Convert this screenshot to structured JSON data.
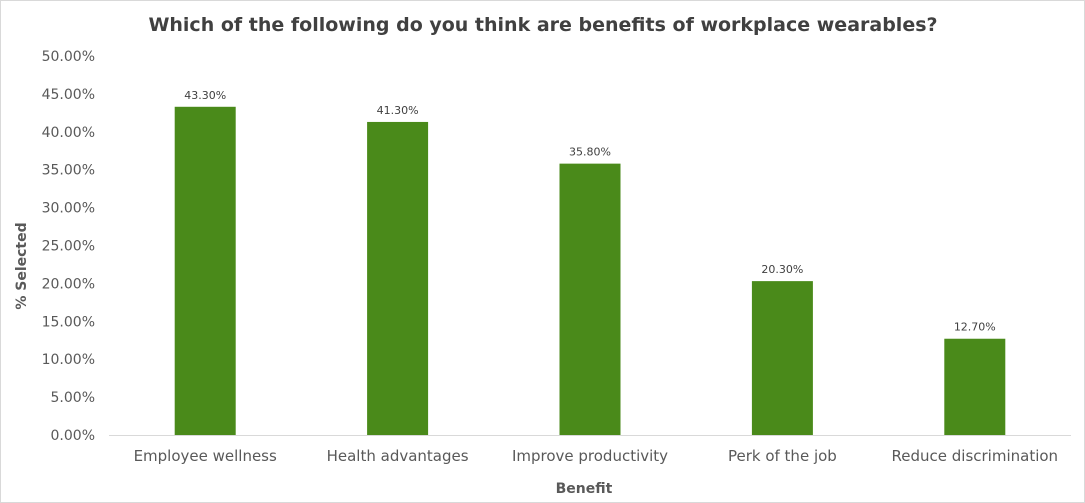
{
  "chart_data": {
    "type": "bar",
    "title": "Which of the following do you think are benefits of workplace wearables?",
    "xlabel": "Benefit",
    "ylabel": "% Selected",
    "categories": [
      "Employee wellness",
      "Health advantages",
      "Improve productivity",
      "Perk of the job",
      "Reduce discrimination"
    ],
    "values": [
      43.3,
      41.3,
      35.8,
      20.3,
      12.7
    ],
    "value_labels": [
      "43.30%",
      "41.30%",
      "35.80%",
      "20.30%",
      "12.70%"
    ],
    "ylim": [
      0,
      50
    ],
    "yticks": [
      "0.00%",
      "5.00%",
      "10.00%",
      "15.00%",
      "20.00%",
      "25.00%",
      "30.00%",
      "35.00%",
      "40.00%",
      "45.00%",
      "50.00%"
    ],
    "grid": false,
    "legend": "none",
    "bar_color": "#4a8a1a"
  }
}
